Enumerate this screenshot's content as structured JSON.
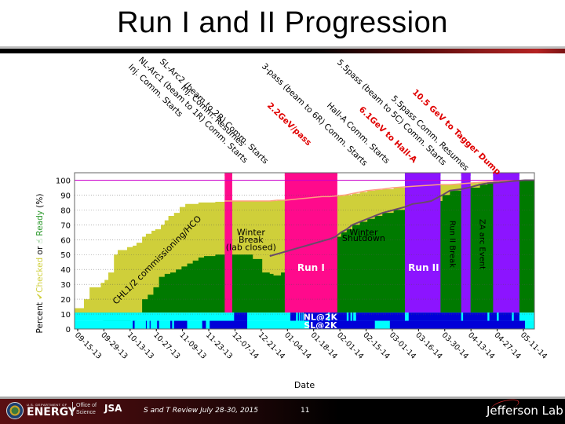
{
  "slide": {
    "title": "Run I and II  Progression",
    "footer": {
      "doe_small": "U.S. DEPARTMENT OF",
      "doe_big": "ENERGY",
      "office_line1": "Office of",
      "office_line2": "Science",
      "jsa": "JSA",
      "review_text": "S and T Review July 28-30, 2015",
      "page_number": "11",
      "lab_name": "Jefferson Lab"
    }
  },
  "colors": {
    "checked_yellow": "#cfcf3a",
    "ready_green": "#007a00",
    "run1_pink": "#ff0a8c",
    "run2_purple": "#8c14ff",
    "nl_cyan": "#00ffff",
    "sl_blue": "#0000d8",
    "ref_line_magenta": "#cc00cc",
    "checked_line": "#ff9f80",
    "ready_line": "#6a4a6a",
    "annotation_red": "#e00000"
  },
  "chart_data": {
    "type": "area",
    "title": "Run I and II  Progression",
    "xlabel": "Date",
    "ylabel_parts": [
      "Percent ",
      "✔Checked",
      " or ",
      "☝ Ready",
      " (%)"
    ],
    "ylim": [
      0,
      105
    ],
    "yticks": [
      0,
      10,
      20,
      30,
      40,
      50,
      60,
      70,
      80,
      90,
      100
    ],
    "xticks": [
      "09-15-13",
      "09-29-13",
      "10-13-13",
      "10-27-13",
      "11-09-13",
      "11-23-13",
      "12-07-14",
      "12-21-14",
      "01-04-14",
      "01-18-14",
      "02-01-14",
      "02-15-14",
      "03-01-14",
      "03-16-14",
      "03-30-14",
      "04-13-14",
      "04-27-14",
      "05-11-14"
    ],
    "grid": true,
    "x_range_days": [
      0,
      245
    ],
    "series": [
      {
        "name": "Checked (%)",
        "color": "#cfcf3a",
        "x": [
          0,
          3,
          5,
          8,
          10,
          14,
          16,
          18,
          21,
          23,
          26,
          28,
          31,
          33,
          36,
          38,
          41,
          43,
          46,
          48,
          50,
          53,
          56,
          59,
          63,
          66,
          70,
          75,
          80,
          85,
          90,
          95,
          100,
          104,
          108,
          112,
          116,
          120,
          124,
          128,
          132,
          136,
          140,
          144,
          148,
          152,
          156,
          160,
          164,
          170,
          176,
          182,
          188,
          194,
          200,
          205,
          210,
          215,
          220,
          225,
          230,
          235,
          240,
          245
        ],
        "values": [
          14,
          14,
          20,
          28,
          28,
          31,
          33,
          38,
          50,
          53,
          53,
          55,
          56,
          58,
          62,
          64,
          66,
          67,
          70,
          73,
          76,
          78,
          82,
          84,
          84,
          85,
          85,
          85.5,
          86,
          86,
          86,
          86,
          86,
          86,
          86.5,
          86.5,
          87,
          87.5,
          88,
          88.5,
          89,
          89,
          89.5,
          90,
          91,
          92,
          93,
          93.5,
          94,
          95,
          95.5,
          96,
          96.5,
          97,
          97,
          97.5,
          98,
          98.5,
          99,
          99,
          99.5,
          99.5,
          100,
          100
        ]
      },
      {
        "name": "Ready (%)",
        "color": "#007a00",
        "x": [
          0,
          30,
          33,
          36,
          39,
          42,
          45,
          48,
          51,
          54,
          57,
          60,
          63,
          66,
          69,
          72,
          75,
          80,
          85,
          90,
          95,
          100,
          104,
          106,
          110,
          115,
          120,
          124,
          128,
          130,
          133,
          136,
          139,
          142,
          145,
          148,
          152,
          156,
          160,
          164,
          170,
          176,
          180,
          186,
          190,
          196,
          200,
          206,
          210,
          216,
          220,
          226,
          230,
          235,
          240,
          245
        ],
        "values": [
          0,
          0,
          10,
          20,
          23,
          28,
          35,
          37,
          38,
          40,
          42,
          44,
          46,
          48,
          49,
          49,
          50,
          50,
          50,
          50,
          47,
          38,
          37,
          36,
          38,
          40,
          42,
          45,
          50,
          55,
          57,
          60,
          62,
          65,
          67,
          70,
          72,
          74,
          76,
          78,
          80,
          82,
          84,
          85,
          86,
          90,
          93,
          94,
          95,
          97,
          98,
          98.5,
          99,
          99.5,
          100,
          100
        ]
      },
      {
        "name": "Checked trend line",
        "color": "#ff9f80"
      },
      {
        "name": "Ready trend line",
        "color": "#6a4a6a"
      }
    ],
    "reference_line": {
      "y": 100,
      "color": "#cc00cc",
      "style": "dotted"
    },
    "run_periods": [
      {
        "label": "",
        "start": 80,
        "end": 84,
        "color": "#ff0a8c"
      },
      {
        "label": "Run I",
        "start": 112,
        "end": 140,
        "color": "#ff0a8c"
      },
      {
        "label": "Run II",
        "start": 176,
        "end": 195,
        "color": "#8c14ff"
      },
      {
        "label": "",
        "start": 206,
        "end": 211,
        "color": "#8c14ff"
      },
      {
        "label": "",
        "start": 223,
        "end": 237,
        "color": "#8c14ff"
      }
    ],
    "region_annotations": [
      {
        "text": "CHL1/2 commissioning/HCO",
        "x": 45,
        "y": 45,
        "rotate": -45
      },
      {
        "text": "Winter",
        "x": 94,
        "y": 63
      },
      {
        "text": "Break",
        "x": 94,
        "y": 58
      },
      {
        "text": "(lab closed)",
        "x": 94,
        "y": 53
      },
      {
        "text": "Winter",
        "x": 154,
        "y": 63
      },
      {
        "text": "Shutdown",
        "x": 154,
        "y": 59
      },
      {
        "text": "Run I",
        "x": 126,
        "y": 39
      },
      {
        "text": "Run II",
        "x": 186,
        "y": 39
      },
      {
        "text": "Run II Break",
        "x": 200,
        "y": 57,
        "rotate": 90
      },
      {
        "text": "ZA arc Event",
        "x": 216,
        "y": 57,
        "rotate": 90
      }
    ],
    "milestones": [
      {
        "text": "Inj. Comm. Starts",
        "color": "#000000"
      },
      {
        "text": "NL-Arc1 (beam to 1R) Comm. Starts",
        "color": "#000000"
      },
      {
        "text": "SL-Arc2 (beam to 2R) Comm. Starts",
        "color": "#000000"
      },
      {
        "text": "Inj. Comm. Resumes",
        "color": "#000000"
      },
      {
        "text": "2.2GeV/pass",
        "color": "#e00000"
      },
      {
        "text": "3-pass (beam to 6R) Comm. Starts",
        "color": "#000000"
      },
      {
        "text": "Hall-A Comm. Starts",
        "color": "#000000"
      },
      {
        "text": "6.1GeV to Hall-A",
        "color": "#e00000"
      },
      {
        "text": "5.5pass (beam to 5C) Comm. Starts",
        "color": "#000000"
      },
      {
        "text": "5.5pass Comm. Resumes",
        "color": "#000000"
      },
      {
        "text": "10.5 GeV to Tagger Dump",
        "color": "#e00000"
      }
    ],
    "status_bands": [
      {
        "name": "NL@2K",
        "y_range": [
          5.5,
          11
        ],
        "on_color": "#0000d8",
        "off_color": "#00ffff",
        "on_intervals": [
          [
            85,
            92
          ],
          [
            115,
            118
          ],
          [
            119,
            119.5
          ],
          [
            120,
            120.5
          ],
          [
            121,
            121.5
          ],
          [
            122,
            135
          ],
          [
            136,
            145
          ],
          [
            146,
            147
          ],
          [
            148,
            148.5
          ],
          [
            150,
            176
          ],
          [
            178,
            206
          ],
          [
            207,
            220
          ],
          [
            221,
            225
          ],
          [
            226,
            233
          ],
          [
            234,
            237
          ]
        ]
      },
      {
        "name": "SL@2K",
        "y_range": [
          0,
          5.5
        ],
        "on_color": "#0000d8",
        "off_color": "#00ffff",
        "on_intervals": [
          [
            31,
            32
          ],
          [
            38,
            38.5
          ],
          [
            40,
            40.5
          ],
          [
            44,
            45
          ],
          [
            51,
            52
          ],
          [
            53,
            60
          ],
          [
            68,
            70
          ],
          [
            72,
            92
          ],
          [
            125,
            160
          ],
          [
            168,
            240
          ]
        ]
      }
    ]
  }
}
